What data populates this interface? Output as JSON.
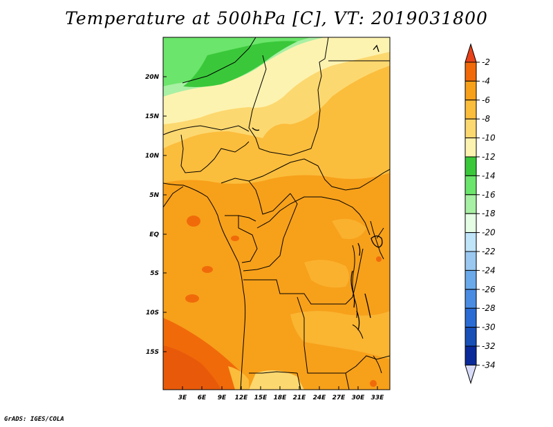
{
  "title": "Temperature at 500hPa [C], VT: 2019031800",
  "credit": "GrADS: IGES/COLA",
  "map": {
    "lat_labels": [
      "20N",
      "15N",
      "10N",
      "5N",
      "EQ",
      "5S",
      "10S",
      "15S"
    ],
    "lon_labels": [
      "3E",
      "6E",
      "9E",
      "12E",
      "15E",
      "18E",
      "21E",
      "24E",
      "27E",
      "30E",
      "33E"
    ]
  },
  "colorbar": {
    "labels": [
      "-2",
      "-4",
      "-6",
      "-8",
      "-10",
      "-12",
      "-14",
      "-16",
      "-18",
      "-20",
      "-22",
      "-24",
      "-26",
      "-28",
      "-30",
      "-32",
      "-34"
    ],
    "colors": [
      "#e8421a",
      "#f06a0a",
      "#f7a01a",
      "#fbbd3c",
      "#fcd870",
      "#fdf3b0",
      "#3ac83a",
      "#6be56b",
      "#a8f0a4",
      "#e4fde4",
      "#c0e4f8",
      "#9ac8f0",
      "#6aaaea",
      "#4a8ce2",
      "#2a6cd4",
      "#1850b8",
      "#0a2a9a",
      "#06126a",
      "#d8dcf8"
    ]
  },
  "chart_data": {
    "type": "heatmap",
    "title": "Temperature at 500hPa [C], VT: 2019031800",
    "variable": "Temperature at 500hPa",
    "units": "C",
    "valid_time": "2019031800",
    "lat_range": [
      "19S",
      "24N"
    ],
    "lon_range": [
      "0E",
      "34E"
    ],
    "contour_levels": [
      -34,
      -32,
      -30,
      -28,
      -26,
      -24,
      -22,
      -20,
      -18,
      -16,
      -14,
      -12,
      -10,
      -8,
      -6,
      -4,
      -2
    ]
  }
}
